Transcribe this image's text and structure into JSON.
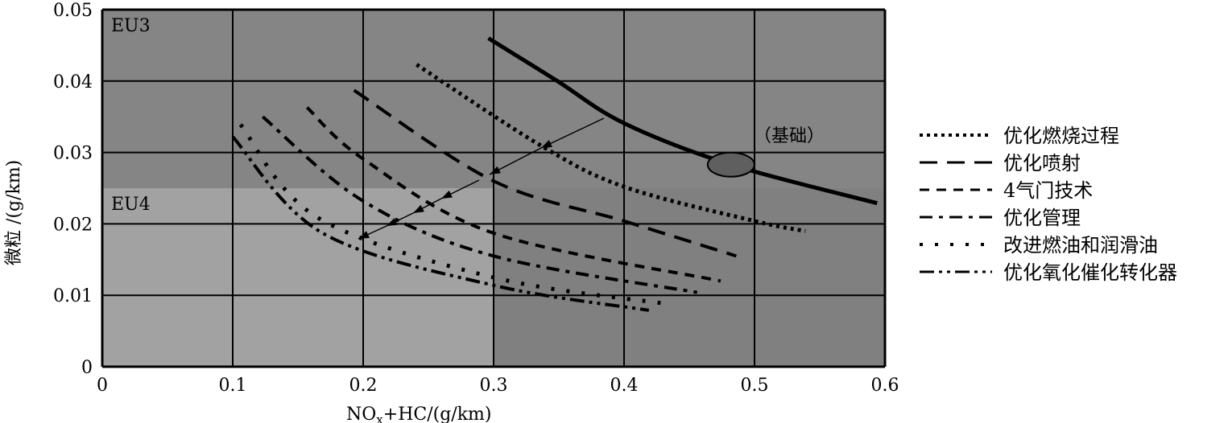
{
  "chart_data": {
    "type": "line",
    "title": "",
    "xlabel": {
      "main": "NO",
      "sub": "x",
      "rest": "+HC/(g/km)"
    },
    "ylabel": "微粒 /(g/km)",
    "xlim": [
      0,
      0.6
    ],
    "ylim": [
      0,
      0.05
    ],
    "xticks": [
      "0",
      "0.1",
      "0.2",
      "0.3",
      "0.4",
      "0.5",
      "0.6"
    ],
    "yticks": [
      "0",
      "0.01",
      "0.02",
      "0.03",
      "0.04",
      "0.05"
    ],
    "grid": true,
    "regions": [
      {
        "label": "EU3",
        "x": [
          0,
          0.6
        ],
        "y": [
          0.025,
          0.05
        ],
        "color": "#858585"
      },
      {
        "label": "EU4",
        "x": [
          0,
          0.3
        ],
        "y": [
          0,
          0.025
        ],
        "color": "#a2a2a2"
      }
    ],
    "plot_bg": "#808080",
    "annotation": {
      "label": "（基础）",
      "point": [
        0.482,
        0.0283
      ],
      "color": "#5f5f5f"
    },
    "legend_position": "right",
    "series": [
      {
        "name": "基础",
        "style": "solid",
        "in_legend": false,
        "x": [
          0.296,
          0.348,
          0.4,
          0.482,
          0.594
        ],
        "y": [
          0.046,
          0.0401,
          0.0341,
          0.0283,
          0.0229
        ]
      },
      {
        "name": "优化燃烧过程",
        "style": "dotted",
        "x": [
          0.241,
          0.335,
          0.4,
          0.5,
          0.539
        ],
        "y": [
          0.0423,
          0.0311,
          0.0252,
          0.0204,
          0.019
        ]
      },
      {
        "name": "优化喷射",
        "style": "longdash",
        "x": [
          0.193,
          0.3,
          0.4,
          0.486
        ],
        "y": [
          0.0387,
          0.026,
          0.0204,
          0.0155
        ]
      },
      {
        "name": "4气门技术",
        "style": "shortdash",
        "x": [
          0.157,
          0.2,
          0.3,
          0.474
        ],
        "y": [
          0.0363,
          0.0291,
          0.0187,
          0.012
        ]
      },
      {
        "name": "优化管理",
        "style": "dashdot",
        "x": [
          0.123,
          0.2,
          0.3,
          0.456
        ],
        "y": [
          0.035,
          0.0232,
          0.0155,
          0.0104
        ]
      },
      {
        "name": "改进燃油和润滑油",
        "style": "sparsedot",
        "x": [
          0.106,
          0.165,
          0.3,
          0.433
        ],
        "y": [
          0.0339,
          0.0209,
          0.0125,
          0.0088
        ]
      },
      {
        "name": "优化氧化催化转化器",
        "style": "dashdotdot",
        "x": [
          0.1,
          0.169,
          0.3,
          0.419
        ],
        "y": [
          0.0322,
          0.0187,
          0.0114,
          0.0079
        ]
      }
    ]
  }
}
